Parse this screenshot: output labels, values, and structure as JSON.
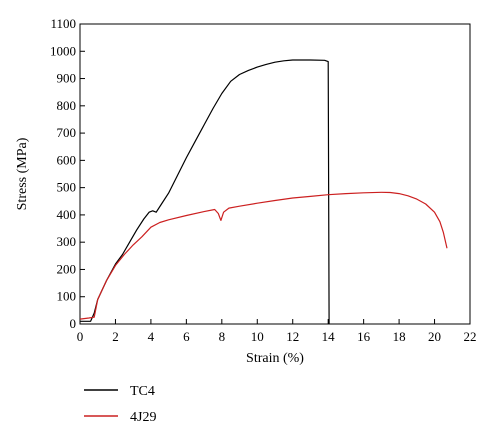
{
  "chart_data": {
    "type": "line",
    "xlabel": "Strain (%)",
    "ylabel": "Stress (MPa)",
    "xlim": [
      0,
      22
    ],
    "ylim": [
      0,
      1100
    ],
    "x_ticks": [
      0,
      2,
      4,
      6,
      8,
      10,
      12,
      14,
      16,
      18,
      20,
      22
    ],
    "y_ticks": [
      0,
      100,
      200,
      300,
      400,
      500,
      600,
      700,
      800,
      900,
      1000,
      1100
    ],
    "grid": false,
    "legend_position": "bottom-left, below plot",
    "series": [
      {
        "name": "TC4",
        "color": "#000000",
        "points": [
          [
            0,
            10
          ],
          [
            0.4,
            10
          ],
          [
            0.6,
            10
          ],
          [
            0.8,
            40
          ],
          [
            1.0,
            90
          ],
          [
            1.5,
            160
          ],
          [
            2.0,
            220
          ],
          [
            2.4,
            255
          ],
          [
            2.8,
            300
          ],
          [
            3.2,
            345
          ],
          [
            3.6,
            385
          ],
          [
            3.9,
            410
          ],
          [
            4.1,
            415
          ],
          [
            4.3,
            410
          ],
          [
            4.6,
            440
          ],
          [
            5.0,
            480
          ],
          [
            5.5,
            545
          ],
          [
            6.0,
            610
          ],
          [
            6.5,
            670
          ],
          [
            7.0,
            730
          ],
          [
            7.5,
            790
          ],
          [
            8.0,
            845
          ],
          [
            8.5,
            890
          ],
          [
            9.0,
            915
          ],
          [
            9.5,
            930
          ],
          [
            10.0,
            942
          ],
          [
            10.5,
            952
          ],
          [
            11.0,
            960
          ],
          [
            11.5,
            965
          ],
          [
            12.0,
            968
          ],
          [
            13.0,
            968
          ],
          [
            13.8,
            967
          ],
          [
            14.0,
            962
          ],
          [
            14.05,
            0
          ]
        ]
      },
      {
        "name": "4J29",
        "color": "#cc2020",
        "points": [
          [
            0,
            18
          ],
          [
            0.5,
            22
          ],
          [
            0.8,
            25
          ],
          [
            1.0,
            90
          ],
          [
            1.5,
            160
          ],
          [
            2.0,
            215
          ],
          [
            2.5,
            255
          ],
          [
            3.0,
            290
          ],
          [
            3.5,
            320
          ],
          [
            4.0,
            355
          ],
          [
            4.5,
            372
          ],
          [
            5.0,
            382
          ],
          [
            6.0,
            398
          ],
          [
            7.0,
            412
          ],
          [
            7.6,
            420
          ],
          [
            7.8,
            405
          ],
          [
            7.95,
            380
          ],
          [
            8.1,
            410
          ],
          [
            8.4,
            425
          ],
          [
            9.0,
            432
          ],
          [
            10.0,
            443
          ],
          [
            11.0,
            453
          ],
          [
            12.0,
            462
          ],
          [
            13.0,
            468
          ],
          [
            14.0,
            474
          ],
          [
            15.0,
            478
          ],
          [
            16.0,
            481
          ],
          [
            17.0,
            483
          ],
          [
            17.5,
            482
          ],
          [
            18.0,
            478
          ],
          [
            18.5,
            470
          ],
          [
            19.0,
            458
          ],
          [
            19.5,
            440
          ],
          [
            20.0,
            410
          ],
          [
            20.3,
            375
          ],
          [
            20.5,
            335
          ],
          [
            20.7,
            278
          ]
        ]
      }
    ]
  }
}
